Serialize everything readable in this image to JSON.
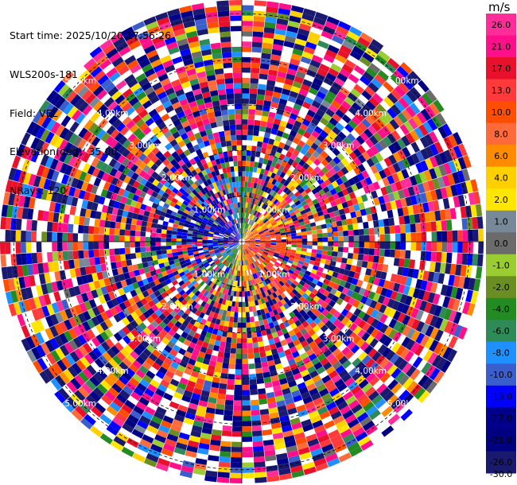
{
  "info": {
    "start_time": "Start time: 2025/10/20 17:56:26",
    "site": "WLS200s-181",
    "field": "Field: VEL",
    "elevation": "Elevation(deg): 35.00",
    "nrays": "NRays: 120"
  },
  "colorbar": {
    "unit": "m/s",
    "levels": [
      {
        "label": "26.0",
        "color": "#ff2d9a"
      },
      {
        "label": "21.0",
        "color": "#ff0f8a"
      },
      {
        "label": "17.0",
        "color": "#e8102a"
      },
      {
        "label": "13.0",
        "color": "#ff3a3a"
      },
      {
        "label": "10.0",
        "color": "#ff4e00"
      },
      {
        "label": "8.0",
        "color": "#ff6a3a"
      },
      {
        "label": "6.0",
        "color": "#ff8c00"
      },
      {
        "label": "4.0",
        "color": "#ffd000"
      },
      {
        "label": "2.0",
        "color": "#ffe600"
      },
      {
        "label": "1.0",
        "color": "#778899"
      },
      {
        "label": "0.0",
        "color": "#6b6b6b"
      },
      {
        "label": "-1.0",
        "color": "#9acd32"
      },
      {
        "label": "-2.0",
        "color": "#6b8e23"
      },
      {
        "label": "-4.0",
        "color": "#228b22"
      },
      {
        "label": "-6.0",
        "color": "#2e8b57"
      },
      {
        "label": "-8.0",
        "color": "#1e90ff"
      },
      {
        "label": "-10.0",
        "color": "#3a5fcd"
      },
      {
        "label": "-13.0",
        "color": "#0000ff"
      },
      {
        "label": "-17.0",
        "color": "#00008b"
      },
      {
        "label": "-21.0",
        "color": "#000080"
      },
      {
        "label": "-26.0",
        "color": "#191970"
      }
    ],
    "bottom_label": "-30.0"
  },
  "chart_data": {
    "type": "heatmap",
    "projection": "polar (PPI)",
    "field": "VEL",
    "units": "m/s",
    "nrays": 120,
    "value_range": [
      -30.0,
      26.0
    ],
    "range_rings": [
      {
        "range_km": 1.0,
        "label": "1.00km"
      },
      {
        "range_km": 2.0,
        "label": "2.00km"
      },
      {
        "range_km": 3.0,
        "label": "3.00km"
      },
      {
        "range_km": 4.0,
        "label": "4.00km"
      },
      {
        "range_km": 5.0,
        "label": "5.00km"
      }
    ],
    "max_range_km": 5.3,
    "pattern_note": "inner ~1.5 km shows coherent dipole: negative (blue/green) to the west/north-west, positive (orange/red) to the east/south-east; outer gates noisy"
  }
}
